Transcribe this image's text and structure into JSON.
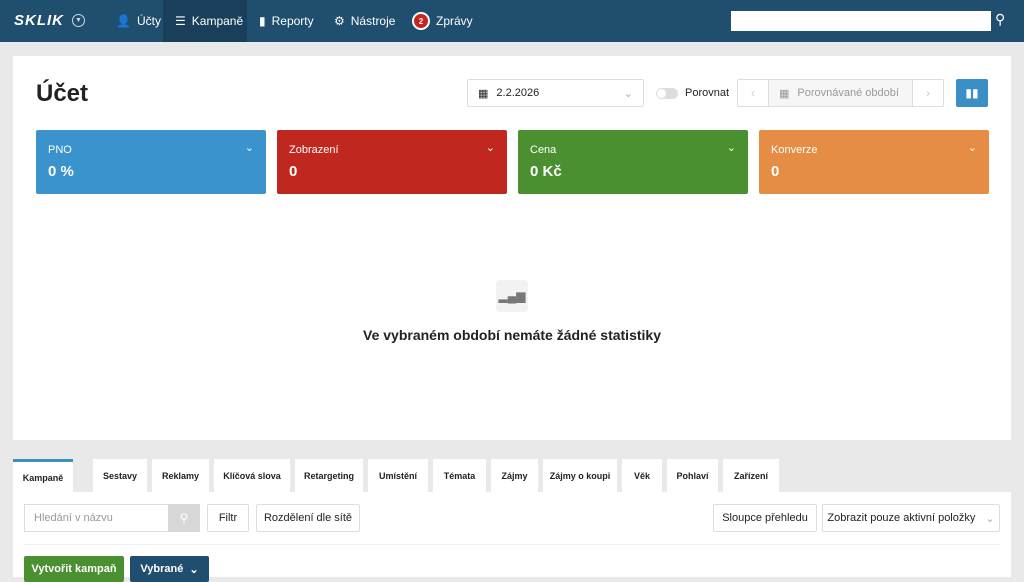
{
  "header": {
    "logo": "SKLIK",
    "nav": [
      {
        "label": "Účty",
        "icon": "users-icon"
      },
      {
        "label": "Kampaně",
        "icon": "menu-icon"
      },
      {
        "label": "Reporty",
        "icon": "bar-chart-icon"
      },
      {
        "label": "Nástroje",
        "icon": "gear-icon"
      },
      {
        "label": "Zprávy",
        "badge": "2"
      }
    ],
    "search_value": ""
  },
  "page": {
    "title": "Účet",
    "date": "2.2.2026",
    "compare_label": "Porovnat",
    "compare_placeholder": "Porovnávané období"
  },
  "kpis": [
    {
      "label": "PNO",
      "value": "0 %",
      "color": "#3a93cd"
    },
    {
      "label": "Zobrazení",
      "value": "0",
      "color": "#c0281f"
    },
    {
      "label": "Cena",
      "value": "0 Kč",
      "color": "#4a9030"
    },
    {
      "label": "Konverze",
      "value": "0",
      "color": "#e58d45"
    }
  ],
  "empty_message": "Ve vybraném období nemáte žádné statistiky",
  "tabs": [
    "Kampaně",
    "Sestavy",
    "Reklamy",
    "Klíčová slova",
    "Retargeting",
    "Umístění",
    "Témata",
    "Zájmy",
    "Zájmy o koupi",
    "Věk",
    "Pohlaví",
    "Zařízení"
  ],
  "toolbar": {
    "search_placeholder": "Hledání v názvu",
    "filter": "Filtr",
    "split": "Rozdělení dle sítě",
    "columns": "Sloupce přehledu",
    "active_only": "Zobrazit pouze aktivní položky",
    "create": "Vytvořit kampaň",
    "selected": "Vybrané"
  }
}
